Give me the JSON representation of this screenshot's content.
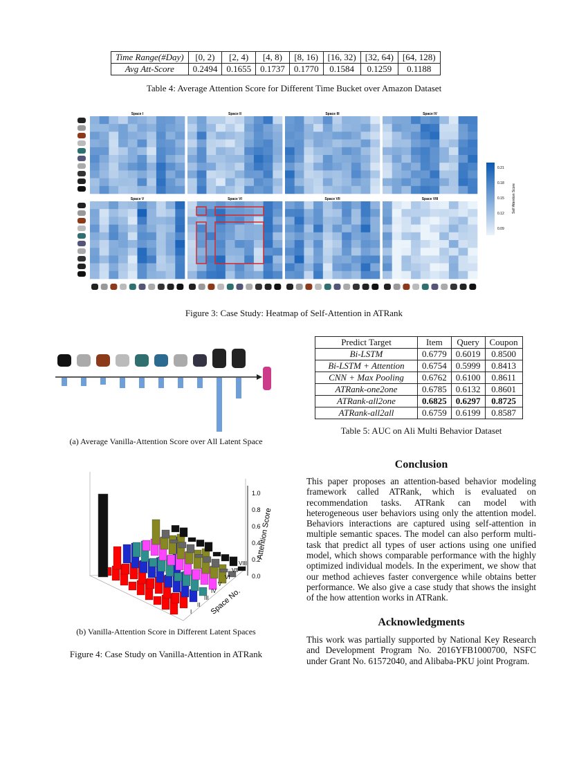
{
  "table4": {
    "header": [
      "Time Range(#Day)",
      "[0, 2)",
      "[2, 4)",
      "[4, 8)",
      "[8, 16)",
      "[16, 32)",
      "[32, 64)",
      "[64, 128)"
    ],
    "row": [
      "Avg Att-Score",
      "0.2494",
      "0.1655",
      "0.1737",
      "0.1770",
      "0.1584",
      "0.1259",
      "0.1188"
    ],
    "caption": "Table 4: Average Attention Score for Different Time Bucket over Amazon Dataset"
  },
  "figure3": {
    "subplots": [
      "Space I",
      "Space II",
      "Space III",
      "Space IV",
      "Space V",
      "Space VI",
      "Space VII",
      "Space VIII"
    ],
    "colorbar_label": "Self Attention Score",
    "colorbar_ticks": [
      "0.21",
      "0.18",
      "0.15",
      "0.12",
      "0.09"
    ],
    "caption": "Figure 3: Case Study: Heatmap of Self-Attention in ATRank"
  },
  "figure4": {
    "subcaption_a": "(a)  Average Vanilla-Attention Score over All Latent Space",
    "axis_ticks": [
      "1.0",
      "0.8",
      "0.6",
      "0.4",
      "0.2",
      "0.0"
    ],
    "z_label": "Attention Score",
    "space_label": "Space No.",
    "spaces": [
      "I",
      "II",
      "III",
      "IV",
      "V",
      "VI",
      "VII",
      "VIII"
    ],
    "subcaption_b": "(b)  Vanilla-Attention Score in Different Latent Spaces",
    "caption": "Figure 4: Case Study on Vanilla-Attention in ATRank"
  },
  "table5": {
    "header": [
      "Predict Target",
      "Item",
      "Query",
      "Coupon"
    ],
    "rows": [
      [
        "Bi-LSTM",
        "0.6779",
        "0.6019",
        "0.8500"
      ],
      [
        "Bi-LSTM + Attention",
        "0.6754",
        "0.5999",
        "0.8413"
      ],
      [
        "CNN + Max Pooling",
        "0.6762",
        "0.6100",
        "0.8611"
      ],
      [
        "ATRank-one2one",
        "0.6785",
        "0.6132",
        "0.8601"
      ],
      [
        "ATRank-all2one",
        "0.6825",
        "0.6297",
        "0.8725"
      ],
      [
        "ATRank-all2all",
        "0.6759",
        "0.6199",
        "0.8587"
      ]
    ],
    "caption": "Table 5: AUC on Ali Multi Behavior Dataset"
  },
  "conclusion": {
    "heading": "Conclusion",
    "text": "This paper proposes an attention-based behavior modeling framework called ATRank, which is evaluated on recommendation tasks. ATRank can model with heterogeneous user behaviors using only the attention model. Behaviors interactions are captured using self-attention in multiple semantic spaces. The model can also perform multi-task that predict all types of user actions using one unified model, which shows comparable performance with the highly optimized individual models. In the experiment, we show that our method achieves faster convergence while obtains better performance. We also give a case study that shows the insight of the how attention works in ATRank."
  },
  "acknowledgments": {
    "heading": "Acknowledgments",
    "text": "This work was partially supported by National Key Research and Development Program No. 2016YFB1000700, NSFC under Grant No. 61572040, and Alibaba-PKU joint Program."
  }
}
